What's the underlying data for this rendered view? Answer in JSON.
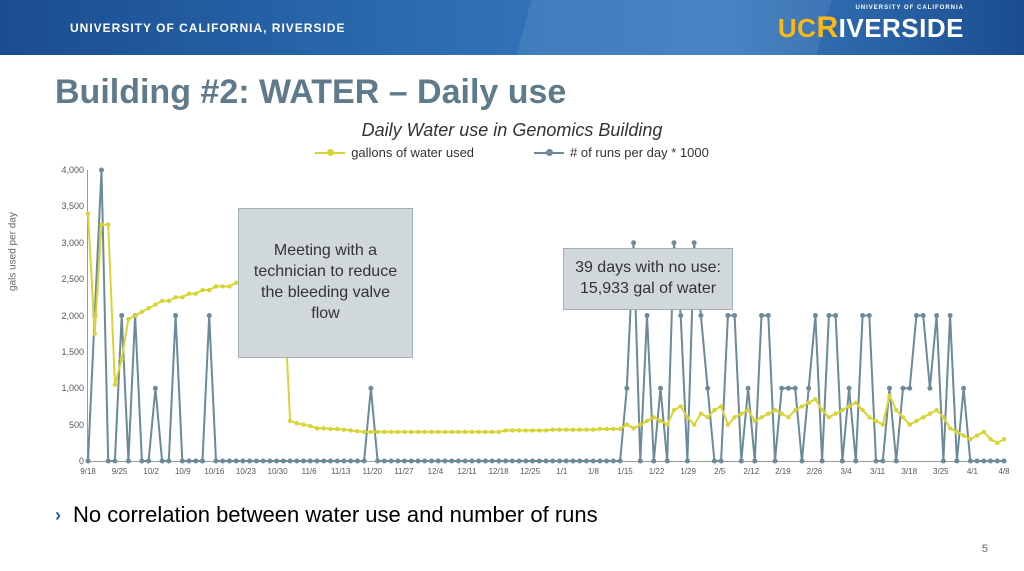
{
  "banner": {
    "left_text": "UNIVERSITY OF CALIFORNIA, RIVERSIDE",
    "logo_small": "UNIVERSITY OF CALIFORNIA",
    "logo_uc": "UC",
    "logo_r": "R",
    "logo_rest": "IVERSIDE"
  },
  "slide_title": "Building #2: WATER – Daily use",
  "chart": {
    "title": "Daily Water use in Genomics Building",
    "legend": [
      {
        "label": "gallons of water used",
        "color": "#d9d436"
      },
      {
        "label": "# of runs per day * 1000",
        "color": "#6b8a9a"
      }
    ],
    "y_axis_label": "gals used per day",
    "ylim": [
      0,
      4000
    ],
    "ytick_step": 500,
    "y_ticks": [
      0,
      500,
      1000,
      1500,
      2000,
      2500,
      3000,
      3500,
      4000
    ],
    "x_ticks": [
      "9/18",
      "9/25",
      "10/2",
      "10/9",
      "10/16",
      "10/23",
      "10/30",
      "11/6",
      "11/13",
      "11/20",
      "11/27",
      "12/4",
      "12/11",
      "12/18",
      "12/25",
      "1/1",
      "1/8",
      "1/15",
      "1/22",
      "1/29",
      "2/5",
      "2/12",
      "2/19",
      "2/26",
      "3/4",
      "3/11",
      "3/18",
      "3/25",
      "4/1",
      "4/8"
    ],
    "background_color": "#ffffff",
    "axis_color": "#999999",
    "line_width": 2,
    "marker_size": 4,
    "series_gallons": {
      "color": "#d9d436",
      "values": [
        3400,
        1750,
        3250,
        3250,
        1050,
        1400,
        1950,
        2000,
        2050,
        2100,
        2150,
        2200,
        2200,
        2250,
        2250,
        2300,
        2300,
        2350,
        2350,
        2400,
        2400,
        2400,
        2450,
        2450,
        2450,
        2450,
        2450,
        2450,
        2450,
        2450,
        550,
        520,
        500,
        480,
        450,
        450,
        440,
        440,
        430,
        420,
        410,
        400,
        400,
        400,
        400,
        400,
        400,
        400,
        400,
        400,
        400,
        400,
        400,
        400,
        400,
        400,
        400,
        400,
        400,
        400,
        400,
        400,
        420,
        420,
        420,
        420,
        420,
        420,
        420,
        430,
        430,
        430,
        430,
        430,
        430,
        430,
        440,
        440,
        440,
        440,
        500,
        450,
        500,
        550,
        600,
        550,
        500,
        700,
        750,
        600,
        500,
        650,
        600,
        700,
        750,
        500,
        600,
        650,
        700,
        550,
        600,
        650,
        700,
        650,
        600,
        700,
        750,
        800,
        850,
        700,
        600,
        650,
        700,
        750,
        800,
        700,
        600,
        550,
        500,
        900,
        700,
        600,
        500,
        550,
        600,
        650,
        700,
        600,
        450,
        400,
        350,
        300,
        350,
        400,
        300,
        250,
        300
      ]
    },
    "series_runs": {
      "color": "#6b8a9a",
      "values": [
        0,
        2000,
        4000,
        0,
        0,
        2000,
        0,
        2000,
        0,
        0,
        1000,
        0,
        0,
        2000,
        0,
        0,
        0,
        0,
        2000,
        0,
        0,
        0,
        0,
        0,
        0,
        0,
        0,
        0,
        0,
        0,
        0,
        0,
        0,
        0,
        0,
        0,
        0,
        0,
        0,
        0,
        0,
        0,
        1000,
        0,
        0,
        0,
        0,
        0,
        0,
        0,
        0,
        0,
        0,
        0,
        0,
        0,
        0,
        0,
        0,
        0,
        0,
        0,
        0,
        0,
        0,
        0,
        0,
        0,
        0,
        0,
        0,
        0,
        0,
        0,
        0,
        0,
        0,
        0,
        0,
        0,
        1000,
        3000,
        0,
        2000,
        0,
        1000,
        0,
        3000,
        2000,
        0,
        3000,
        2000,
        1000,
        0,
        0,
        2000,
        2000,
        0,
        1000,
        0,
        2000,
        2000,
        0,
        1000,
        1000,
        1000,
        0,
        1000,
        2000,
        0,
        2000,
        2000,
        0,
        1000,
        0,
        2000,
        2000,
        0,
        0,
        1000,
        0,
        1000,
        1000,
        2000,
        2000,
        1000,
        2000,
        0,
        2000,
        0,
        1000,
        0,
        0,
        0,
        0,
        0,
        0
      ]
    },
    "annotations": [
      {
        "text": "Meeting with a technician to reduce the bleeding valve flow"
      },
      {
        "text": "39 days with no use: 15,933 gal of water"
      }
    ]
  },
  "bullet": "No correlation between water use and number of runs",
  "page_number": "5",
  "colors": {
    "title": "#5f7a8a",
    "banner_bg_start": "#1a4d8f",
    "banner_bg_end": "#3a7bc0",
    "accent_gold": "#fdb913",
    "bullet_chevron": "#1e5a9e",
    "annotation_bg": "#d0d8dc"
  }
}
